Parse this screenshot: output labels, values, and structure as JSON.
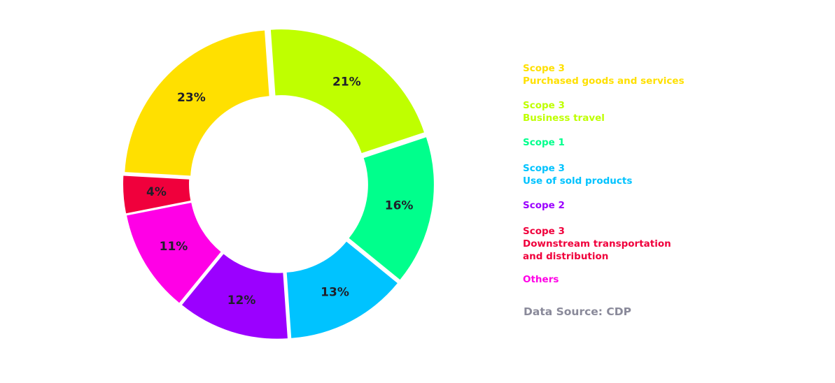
{
  "chart_data": {
    "type": "pie",
    "donut": true,
    "categories": [
      "Scope 3\nPurchased goods and services",
      "Scope 3\nBusiness travel",
      "Scope 1",
      "Scope 3\nUse of sold products",
      "Scope 2",
      "Others",
      "Scope 3\nDownstream transportation\nand distribution"
    ],
    "values": [
      23,
      21,
      16,
      13,
      12,
      11,
      4
    ],
    "value_labels": [
      "23%",
      "21%",
      "16%",
      "13%",
      "12%",
      "11%",
      "4%"
    ],
    "colors": [
      "#FFE000",
      "#BFFF00",
      "#00FF8C",
      "#00C3FF",
      "#9B00FF",
      "#FF00E6",
      "#F0003C"
    ],
    "source": "Data Source: CDP"
  }
}
